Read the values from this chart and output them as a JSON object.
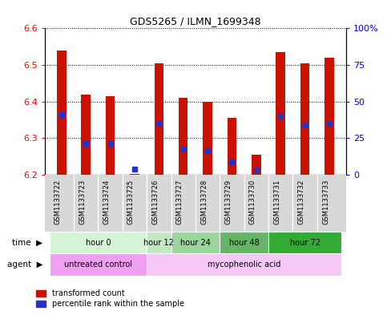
{
  "title": "GDS5265 / ILMN_1699348",
  "samples": [
    "GSM1133722",
    "GSM1133723",
    "GSM1133724",
    "GSM1133725",
    "GSM1133726",
    "GSM1133727",
    "GSM1133728",
    "GSM1133729",
    "GSM1133730",
    "GSM1133731",
    "GSM1133732",
    "GSM1133733"
  ],
  "red_top": [
    6.54,
    6.42,
    6.415,
    6.202,
    6.505,
    6.41,
    6.4,
    6.355,
    6.255,
    6.535,
    6.505,
    6.52
  ],
  "red_bottom": [
    6.2,
    6.2,
    6.2,
    6.2,
    6.2,
    6.2,
    6.2,
    6.2,
    6.2,
    6.2,
    6.2,
    6.2
  ],
  "blue_y": [
    6.365,
    6.285,
    6.285,
    6.215,
    6.34,
    6.27,
    6.265,
    6.235,
    6.213,
    6.36,
    6.335,
    6.34
  ],
  "ylim": [
    6.2,
    6.6
  ],
  "yticks_left": [
    6.2,
    6.3,
    6.4,
    6.5,
    6.6
  ],
  "yticks_right": [
    0,
    25,
    50,
    75,
    100
  ],
  "yticks_right_labels": [
    "0",
    "25",
    "50",
    "75",
    "100%"
  ],
  "time_groups": [
    {
      "label": "hour 0",
      "start": 0,
      "end": 4
    },
    {
      "label": "hour 12",
      "start": 4,
      "end": 5
    },
    {
      "label": "hour 24",
      "start": 5,
      "end": 7
    },
    {
      "label": "hour 48",
      "start": 7,
      "end": 9
    },
    {
      "label": "hour 72",
      "start": 9,
      "end": 12
    }
  ],
  "time_colors": [
    "#d6f5d6",
    "#c2e8c2",
    "#99d699",
    "#66b566",
    "#33aa33"
  ],
  "agent_groups": [
    {
      "label": "untreated control",
      "start": 0,
      "end": 4
    },
    {
      "label": "mycophenolic acid",
      "start": 4,
      "end": 12
    }
  ],
  "agent_colors": [
    "#f0a0f0",
    "#f5c8f5"
  ],
  "legend_red": "transformed count",
  "legend_blue": "percentile rank within the sample",
  "bar_width": 0.38,
  "red_color": "#cc1100",
  "blue_color": "#2233cc",
  "bg_color": "#ffffff"
}
